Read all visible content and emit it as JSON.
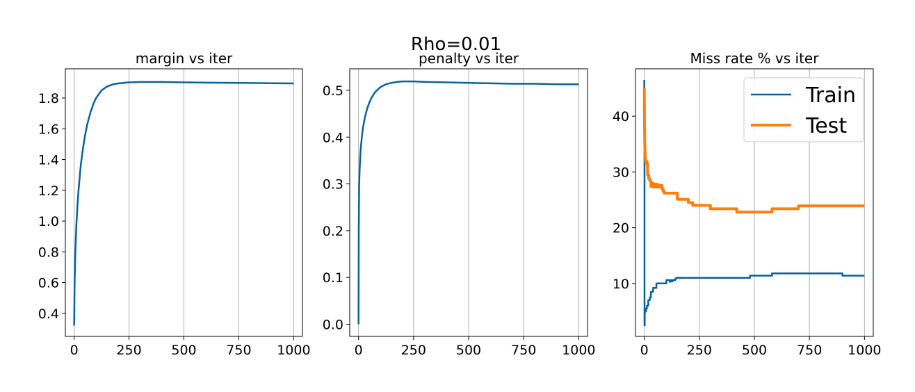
{
  "figure": {
    "suptitle": "Rho=0.01"
  },
  "chart_data": [
    {
      "type": "line",
      "title": "margin vs iter",
      "xlabel": "",
      "ylabel": "",
      "xlim": [
        -40,
        1040
      ],
      "ylim": [
        0.25,
        1.99
      ],
      "xticks": [
        0,
        250,
        500,
        750,
        1000
      ],
      "xtick_labels": [
        "0",
        "250",
        "500",
        "750",
        "1000"
      ],
      "yticks": [
        0.4,
        0.6,
        0.8,
        1.0,
        1.2,
        1.4,
        1.6,
        1.8
      ],
      "ytick_labels": [
        "0.4",
        "0.6",
        "0.8",
        "1.0",
        "1.2",
        "1.4",
        "1.6",
        "1.8"
      ],
      "grid": "vertical",
      "legend": null,
      "series": [
        {
          "color": "#08619e",
          "x": [
            0,
            2,
            5,
            10,
            15,
            20,
            30,
            40,
            50,
            60,
            75,
            90,
            100,
            125,
            150,
            175,
            200,
            250,
            300,
            350,
            400,
            450,
            500,
            600,
            700,
            800,
            900,
            1000
          ],
          "y": [
            0.32,
            0.58,
            0.78,
            0.97,
            1.1,
            1.2,
            1.36,
            1.47,
            1.56,
            1.63,
            1.71,
            1.77,
            1.8,
            1.85,
            1.875,
            1.888,
            1.895,
            1.902,
            1.904,
            1.904,
            1.904,
            1.903,
            1.902,
            1.9,
            1.899,
            1.898,
            1.896,
            1.895
          ]
        }
      ]
    },
    {
      "type": "line",
      "title": "penalty vs iter",
      "xlabel": "",
      "ylabel": "",
      "xlim": [
        -40,
        1040
      ],
      "ylim": [
        -0.026,
        0.546
      ],
      "xticks": [
        0,
        250,
        500,
        750,
        1000
      ],
      "xtick_labels": [
        "0",
        "250",
        "500",
        "750",
        "1000"
      ],
      "yticks": [
        0.0,
        0.1,
        0.2,
        0.3,
        0.4,
        0.5
      ],
      "ytick_labels": [
        "0.0",
        "0.1",
        "0.2",
        "0.3",
        "0.4",
        "0.5"
      ],
      "grid": "vertical",
      "legend": null,
      "series": [
        {
          "color": "#08619e",
          "x": [
            0,
            1,
            2,
            3,
            5,
            8,
            10,
            15,
            20,
            30,
            40,
            50,
            60,
            75,
            90,
            100,
            125,
            150,
            175,
            200,
            250,
            300,
            400,
            500,
            600,
            700,
            800,
            900,
            1000
          ],
          "y": [
            0.0,
            0.2,
            0.26,
            0.3,
            0.33,
            0.36,
            0.375,
            0.4,
            0.42,
            0.445,
            0.462,
            0.475,
            0.485,
            0.496,
            0.503,
            0.507,
            0.513,
            0.516,
            0.518,
            0.519,
            0.519,
            0.518,
            0.517,
            0.516,
            0.515,
            0.514,
            0.514,
            0.513,
            0.513
          ]
        }
      ]
    },
    {
      "type": "line",
      "title": "Miss rate % vs iter",
      "xlabel": "",
      "ylabel": "",
      "xlim": [
        -40,
        1040
      ],
      "ylim": [
        0.5,
        48.5
      ],
      "xticks": [
        0,
        250,
        500,
        750,
        1000
      ],
      "xtick_labels": [
        "0",
        "250",
        "500",
        "750",
        "1000"
      ],
      "yticks": [
        10,
        20,
        30,
        40
      ],
      "ytick_labels": [
        "10",
        "20",
        "30",
        "40"
      ],
      "grid": "vertical",
      "legend": "top-right",
      "series": [
        {
          "name": "Train",
          "color": "#08619e",
          "width": 2.5,
          "x": [
            0,
            1,
            1,
            2,
            2,
            3,
            3,
            5,
            5,
            8,
            8,
            12,
            12,
            18,
            18,
            25,
            25,
            30,
            30,
            40,
            40,
            55,
            55,
            70,
            70,
            100,
            100,
            115,
            115,
            120,
            120,
            125,
            125,
            130,
            130,
            140,
            140,
            145,
            145,
            150,
            150,
            480,
            480,
            560,
            560,
            580,
            580,
            900,
            900,
            1000
          ],
          "y": [
            46.5,
            30.5,
            2.5,
            2.5,
            4.8,
            4.8,
            5.5,
            5.5,
            5.0,
            5.0,
            5.5,
            5.5,
            6.0,
            6.0,
            7.0,
            7.0,
            7.5,
            7.5,
            8.5,
            8.5,
            9.2,
            9.2,
            10.0,
            10.0,
            10.0,
            10.0,
            10.6,
            10.6,
            10.3,
            10.3,
            10.6,
            10.6,
            10.4,
            10.4,
            10.6,
            10.6,
            10.8,
            10.8,
            11.0,
            11.0,
            11.0,
            11.0,
            11.4,
            11.4,
            11.4,
            11.4,
            11.8,
            11.8,
            11.4,
            11.4
          ]
        },
        {
          "name": "Test",
          "color": "#ff7f0e",
          "width": 4,
          "x": [
            0,
            1,
            2,
            3,
            5,
            8,
            10,
            12,
            15,
            15,
            20,
            20,
            25,
            25,
            30,
            30,
            35,
            35,
            40,
            40,
            45,
            45,
            50,
            50,
            55,
            55,
            60,
            60,
            65,
            65,
            70,
            70,
            75,
            75,
            80,
            80,
            85,
            85,
            90,
            90,
            100,
            100,
            150,
            150,
            180,
            180,
            200,
            200,
            220,
            220,
            300,
            300,
            420,
            420,
            580,
            580,
            700,
            700,
            1000
          ],
          "y": [
            45.0,
            38.0,
            35.5,
            34.0,
            32.5,
            31.5,
            32.0,
            31.8,
            31.5,
            29.5,
            29.5,
            28.8,
            28.8,
            28.4,
            28.4,
            27.4,
            27.4,
            28.0,
            28.0,
            27.3,
            27.3,
            27.8,
            27.8,
            27.3,
            27.3,
            27.8,
            27.8,
            27.3,
            27.3,
            27.6,
            27.6,
            27.3,
            27.3,
            27.6,
            27.6,
            27.0,
            27.0,
            26.6,
            26.6,
            26.2,
            26.2,
            26.2,
            26.2,
            25.1,
            25.1,
            25.1,
            25.1,
            24.5,
            24.5,
            24.0,
            24.0,
            23.4,
            23.4,
            22.8,
            22.8,
            23.4,
            23.4,
            23.9,
            23.9
          ]
        }
      ]
    }
  ]
}
